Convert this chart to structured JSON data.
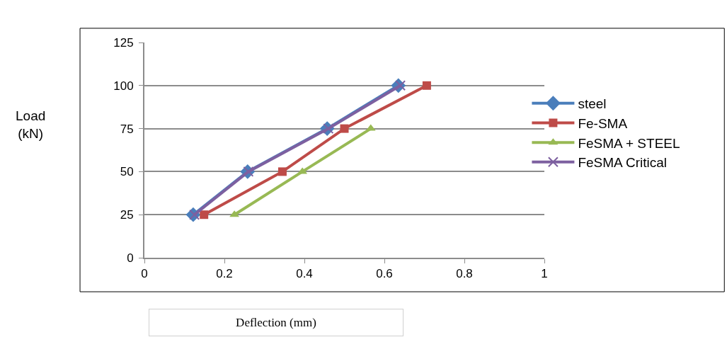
{
  "chart_data": {
    "type": "line",
    "xlabel": "Deflection (mm)",
    "annotations": [
      "Load\n(kN)"
    ],
    "xlim": [
      0,
      1
    ],
    "xticks": [
      0,
      0.2,
      0.4,
      0.6,
      0.8,
      1
    ],
    "ylim": [
      0,
      125
    ],
    "yticks": [
      0,
      25,
      50,
      75,
      100,
      125
    ],
    "grid": "y",
    "legend": "right",
    "line_style": "solid",
    "series": [
      {
        "name": "steel",
        "color": "#4a7ebb",
        "marker": "diamond",
        "x": [
          0.122,
          0.258,
          0.457,
          0.635
        ],
        "values": [
          25,
          50,
          75,
          100
        ]
      },
      {
        "name": "Fe-SMA",
        "color": "#be4b48",
        "marker": "square",
        "x": [
          0.149,
          0.345,
          0.5,
          0.706
        ],
        "values": [
          25,
          50,
          75,
          100
        ]
      },
      {
        "name": "FeSMA + STEEL",
        "color": "#98b954",
        "marker": "triangle",
        "x": [
          0.225,
          0.395,
          0.566
        ],
        "values": [
          25,
          50,
          75
        ]
      },
      {
        "name": "FeSMA Critical",
        "color": "#7d60a0",
        "marker": "cross",
        "x": [
          0.125,
          0.26,
          0.46,
          0.64
        ],
        "values": [
          25,
          50,
          75,
          100
        ]
      }
    ]
  }
}
